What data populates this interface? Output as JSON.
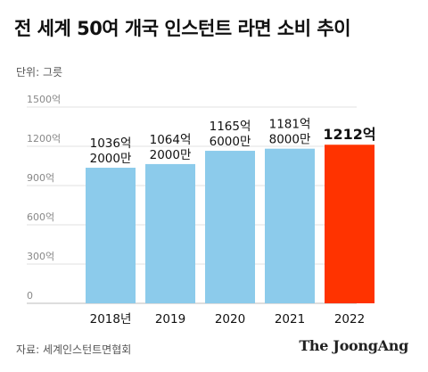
{
  "chart_data": {
    "type": "bar",
    "title": "전 세계 50여 개국 인스턴트 라면 소비 추이",
    "unit_label": "단위: 그릇",
    "categories": [
      "2018년",
      "2019",
      "2020",
      "2021",
      "2022"
    ],
    "values": [
      1036.2,
      1064.2,
      1165.6,
      1181.8,
      1212
    ],
    "value_labels": [
      [
        "1036억",
        "2000만"
      ],
      [
        "1064억",
        "2000만"
      ],
      [
        "1165억",
        "6000만"
      ],
      [
        "1181억",
        "8000만"
      ],
      [
        "1212억"
      ]
    ],
    "y_ticks": [
      0,
      300,
      600,
      900,
      1200,
      1500
    ],
    "y_tick_labels": [
      "0",
      "300억",
      "600억",
      "900억",
      "1200억",
      "1500억"
    ],
    "ylim": [
      0,
      1500
    ],
    "grid": true,
    "colors": [
      "#8ccbeb",
      "#8ccbeb",
      "#8ccbeb",
      "#8ccbeb",
      "#ff3300"
    ],
    "highlight_index": 4
  },
  "source": "자료: 세계인스턴트면협회",
  "brand": "The JoongAng"
}
